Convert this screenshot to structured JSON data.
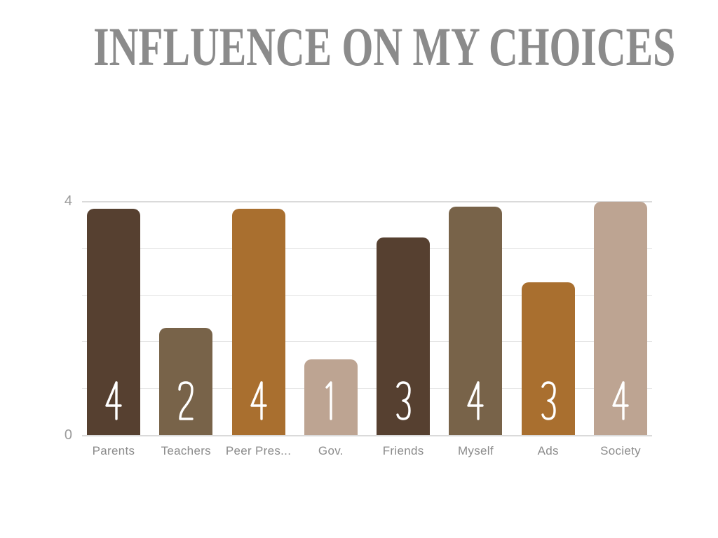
{
  "slide": {
    "background_color": "#ffffff"
  },
  "chart_data": {
    "type": "bar",
    "title": "INFLUENCE ON MY CHOICES",
    "title_color": "#8b8b8b",
    "xlabel": "",
    "ylabel": "",
    "categories": [
      "Parents",
      "Teachers",
      "Peer Pres...",
      "Gov.",
      "Friends",
      "Myself",
      "Ads",
      "Society"
    ],
    "values": [
      4,
      2,
      4,
      1,
      3,
      4,
      3,
      4
    ],
    "value_labels": [
      "4",
      "2",
      "4",
      "1",
      "3",
      "4",
      "3",
      "4"
    ],
    "bar_heights_est": [
      3.87,
      1.83,
      3.87,
      1.29,
      3.38,
      3.91,
      2.61,
      3.99
    ],
    "bar_colors": [
      "#564030",
      "#786349",
      "#a96f2f",
      "#bda492",
      "#564030",
      "#786349",
      "#a96f2f",
      "#bda492"
    ],
    "palette": [
      "#564030",
      "#786349",
      "#a96f2f",
      "#bda492"
    ],
    "ylim": [
      0,
      4
    ],
    "yticks_shown": [
      {
        "label": "4",
        "value": 4
      },
      {
        "label": "0",
        "value": 0
      }
    ],
    "gridlines": 6,
    "grid": "horizontal",
    "gridline_color": "#e6e6e6",
    "legend_position": "none",
    "value_label_color": "#ffffff",
    "axis_label_color": "#9b9b9b",
    "category_label_color": "#8b8b8b"
  }
}
